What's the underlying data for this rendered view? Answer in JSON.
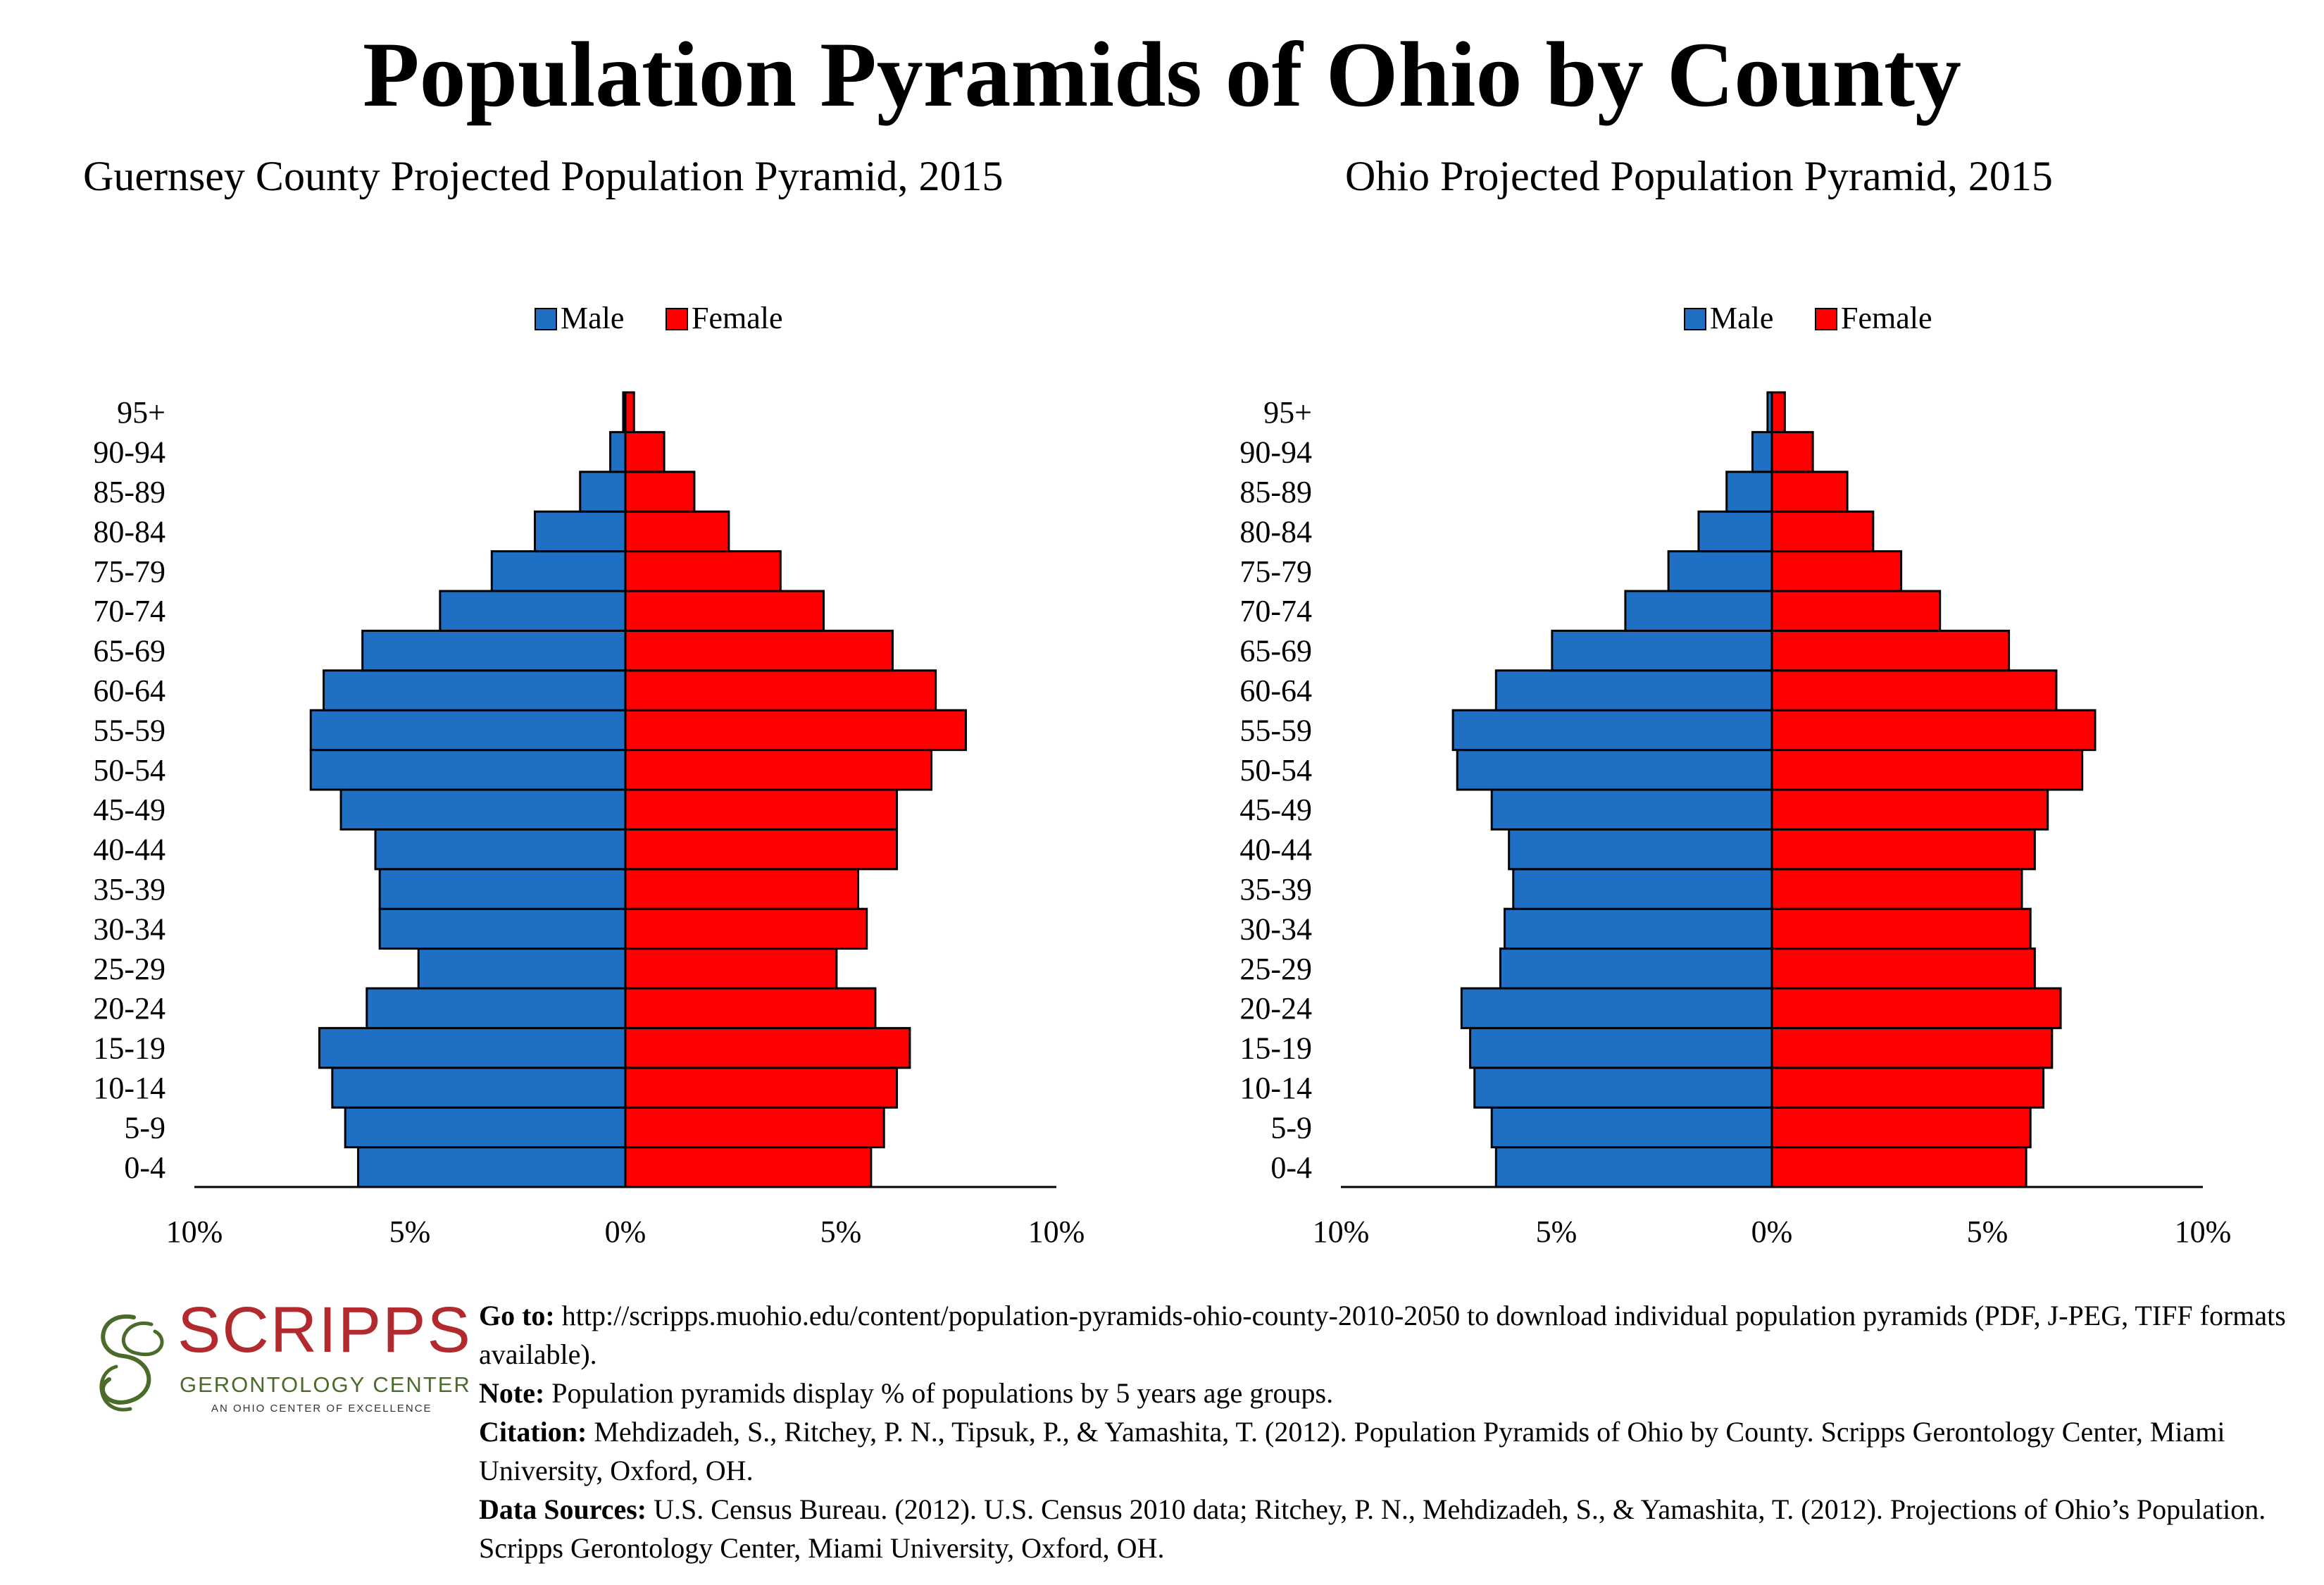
{
  "title": "Population Pyramids of Ohio by County",
  "legend": {
    "male": "Male",
    "female": "Female"
  },
  "colors": {
    "male": "#1f6fc4",
    "female": "#ff0000",
    "outline": "#000000"
  },
  "chart_data": [
    {
      "type": "bar",
      "orientation": "horizontal-pyramid",
      "title": "Guernsey County Projected Population Pyramid, 2015",
      "categories": [
        "0-4",
        "5-9",
        "10-14",
        "15-19",
        "20-24",
        "25-29",
        "30-34",
        "35-39",
        "40-44",
        "45-49",
        "50-54",
        "55-59",
        "60-64",
        "65-69",
        "70-74",
        "75-79",
        "80-84",
        "85-89",
        "90-94",
        "95+"
      ],
      "series": [
        {
          "name": "Male",
          "values": [
            6.2,
            6.5,
            6.8,
            7.1,
            6.0,
            4.8,
            5.7,
            5.7,
            5.8,
            6.6,
            7.3,
            7.3,
            7.0,
            6.1,
            4.3,
            3.1,
            2.1,
            1.05,
            0.35,
            0.05
          ]
        },
        {
          "name": "Female",
          "values": [
            5.7,
            6.0,
            6.3,
            6.6,
            5.8,
            4.9,
            5.6,
            5.4,
            6.3,
            6.3,
            7.1,
            7.9,
            7.2,
            6.2,
            4.6,
            3.6,
            2.4,
            1.6,
            0.9,
            0.2
          ]
        }
      ],
      "xlim": [
        -10,
        10
      ],
      "xticks": [
        "10%",
        "5%",
        "0%",
        "5%",
        "10%"
      ],
      "legend_position": "top"
    },
    {
      "type": "bar",
      "orientation": "horizontal-pyramid",
      "title": "Ohio Projected Population Pyramid, 2015",
      "categories": [
        "0-4",
        "5-9",
        "10-14",
        "15-19",
        "20-24",
        "25-29",
        "30-34",
        "35-39",
        "40-44",
        "45-49",
        "50-54",
        "55-59",
        "60-64",
        "65-69",
        "70-74",
        "75-79",
        "80-84",
        "85-89",
        "90-94",
        "95+"
      ],
      "series": [
        {
          "name": "Male",
          "values": [
            6.4,
            6.5,
            6.9,
            7.0,
            7.2,
            6.3,
            6.2,
            6.0,
            6.1,
            6.5,
            7.3,
            7.4,
            6.4,
            5.1,
            3.4,
            2.4,
            1.7,
            1.05,
            0.45,
            0.1
          ]
        },
        {
          "name": "Female",
          "values": [
            5.9,
            6.0,
            6.3,
            6.5,
            6.7,
            6.1,
            6.0,
            5.8,
            6.1,
            6.4,
            7.2,
            7.5,
            6.6,
            5.5,
            3.9,
            3.0,
            2.35,
            1.75,
            0.95,
            0.3
          ]
        }
      ],
      "xlim": [
        -10,
        10
      ],
      "xticks": [
        "10%",
        "5%",
        "0%",
        "5%",
        "10%"
      ],
      "legend_position": "top"
    }
  ],
  "footer": {
    "logo": {
      "word": "SCRIPPS",
      "subtitle": "GERONTOLOGY CENTER",
      "tagline": "AN OHIO CENTER OF EXCELLENCE"
    },
    "goto_label": "Go to:",
    "goto_text": " http://scripps.muohio.edu/content/population-pyramids-ohio-county-2010-2050 to download individual population pyramids (PDF, J-PEG, TIFF formats available).",
    "note_label": "Note:",
    "note_text": " Population pyramids display % of populations by 5 years age groups.",
    "citation_label": "Citation:",
    "citation_text": " Mehdizadeh, S., Ritchey, P. N., Tipsuk, P., & Yamashita, T. (2012). Population Pyramids of Ohio by County. Scripps Gerontology Center, Miami University, Oxford, OH.",
    "sources_label": "Data Sources:",
    "sources_text": " U.S. Census Bureau. (2012). U.S. Census 2010 data; Ritchey, P. N., Mehdizadeh, S., & Yamashita, T. (2012). Projections of Ohio’s Population. Scripps Gerontology Center, Miami University, Oxford, OH."
  }
}
